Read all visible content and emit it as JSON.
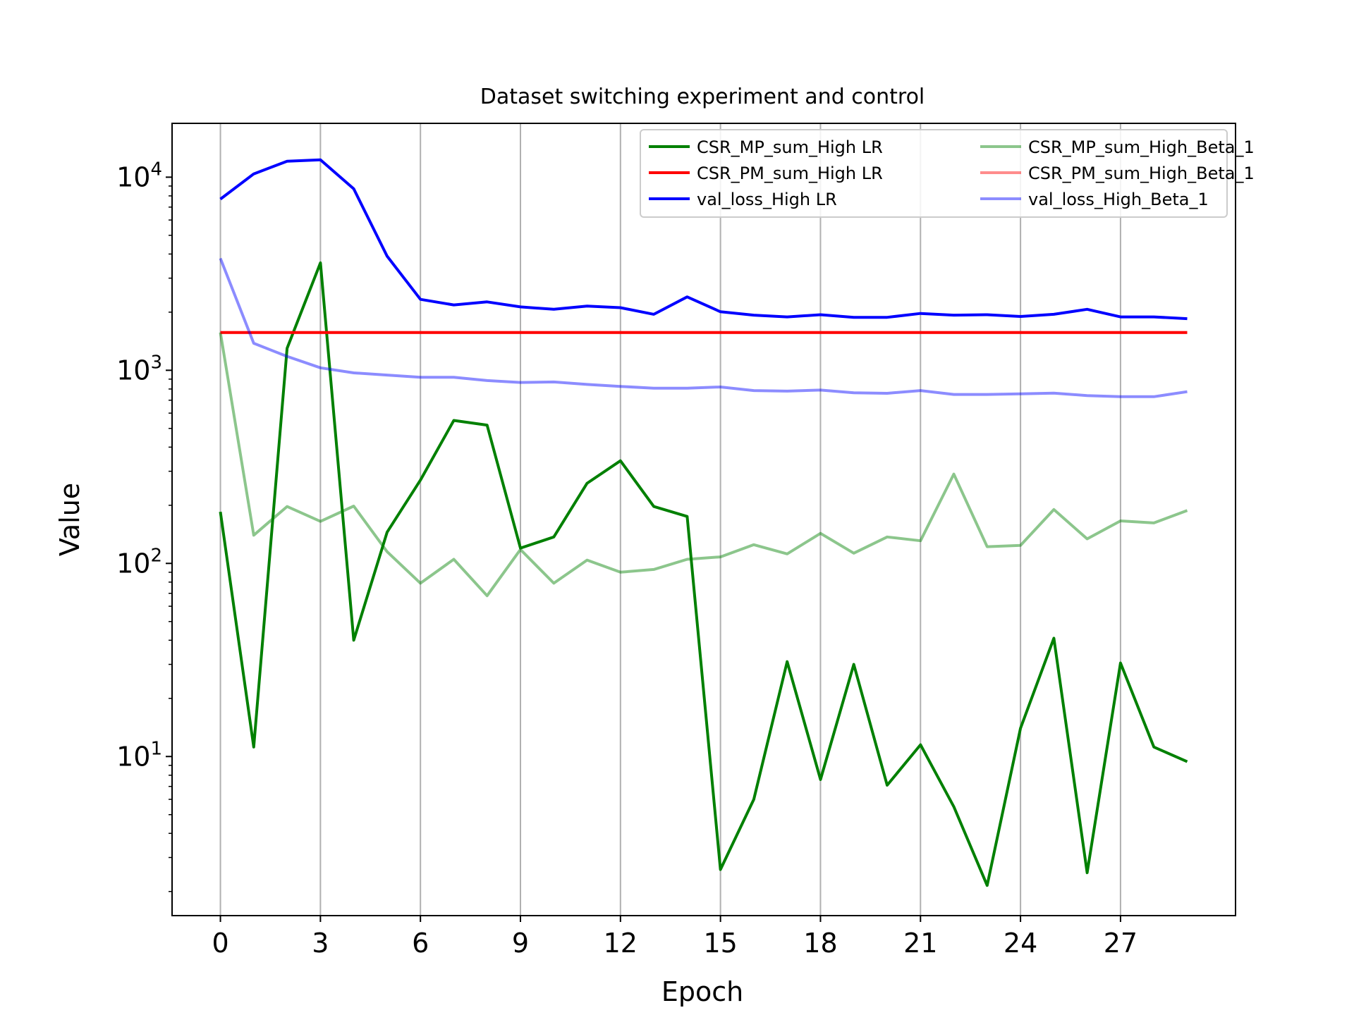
{
  "chart_data": {
    "type": "line",
    "title": "Dataset switching experiment and control",
    "xlabel": "Epoch",
    "ylabel": "Value",
    "yscale": "log",
    "xlim": [
      -1.45,
      30.45
    ],
    "ylim": [
      1.5,
      19000
    ],
    "xticks": [
      "0",
      "3",
      "6",
      "9",
      "12",
      "15",
      "18",
      "21",
      "24",
      "27"
    ],
    "xtick_values": [
      0,
      3,
      6,
      9,
      12,
      15,
      18,
      21,
      24,
      27
    ],
    "yticks": [
      {
        "value": 10,
        "base": "10",
        "exp": "1"
      },
      {
        "value": 100,
        "base": "10",
        "exp": "2"
      },
      {
        "value": 1000,
        "base": "10",
        "exp": "3"
      },
      {
        "value": 10000,
        "base": "10",
        "exp": "4"
      }
    ],
    "grid": "vertical",
    "legend_position": "top-right",
    "legend_columns": 2,
    "x": [
      0,
      1,
      2,
      3,
      4,
      5,
      6,
      7,
      8,
      9,
      10,
      11,
      12,
      13,
      14,
      15,
      16,
      17,
      18,
      19,
      20,
      21,
      22,
      23,
      24,
      25,
      26,
      27,
      28,
      29
    ],
    "series": [
      {
        "name": "CSR_MP_sum_High LR",
        "color": "#008000",
        "opacity": 1,
        "values": [
          185,
          11.2,
          1300,
          3600,
          40,
          145,
          270,
          550,
          520,
          120,
          137,
          260,
          340,
          197,
          175,
          2.6,
          6.0,
          31,
          7.6,
          30,
          7.1,
          11.5,
          5.5,
          2.15,
          14,
          41,
          2.5,
          30.5,
          11.2,
          9.4
        ]
      },
      {
        "name": "CSR_PM_sum_High LR",
        "color": "#ff0000",
        "opacity": 1,
        "values": [
          1570,
          1570,
          1570,
          1570,
          1570,
          1570,
          1570,
          1570,
          1570,
          1570,
          1570,
          1570,
          1570,
          1570,
          1570,
          1570,
          1570,
          1570,
          1570,
          1570,
          1570,
          1570,
          1570,
          1570,
          1570,
          1570,
          1570,
          1570,
          1570,
          1570
        ]
      },
      {
        "name": "val_loss_High LR",
        "color": "#0000ff",
        "opacity": 1,
        "values": [
          7700,
          10400,
          12100,
          12300,
          8700,
          3900,
          2330,
          2180,
          2260,
          2130,
          2070,
          2150,
          2110,
          1950,
          2400,
          2010,
          1930,
          1890,
          1940,
          1880,
          1880,
          1970,
          1930,
          1940,
          1900,
          1950,
          2070,
          1890,
          1890,
          1850
        ]
      },
      {
        "name": "CSR_MP_sum_High_Beta_1",
        "color": "#008000",
        "opacity": 0.45,
        "values": [
          1570,
          140,
          197,
          165,
          198,
          115,
          79,
          105,
          68,
          118,
          79,
          104,
          90,
          93,
          105,
          108,
          125,
          112,
          143,
          113,
          137,
          131,
          290,
          122,
          124,
          190,
          134,
          166,
          162,
          188
        ]
      },
      {
        "name": "CSR_PM_sum_High_Beta_1",
        "color": "#ff0000",
        "opacity": 0.45,
        "values": [
          1570,
          1570,
          1570,
          1570,
          1570,
          1570,
          1570,
          1570,
          1570,
          1570,
          1570,
          1570,
          1570,
          1570,
          1570,
          1570,
          1570,
          1570,
          1570,
          1570,
          1570,
          1570,
          1570,
          1570,
          1570,
          1570,
          1570,
          1570,
          1570,
          1570
        ]
      },
      {
        "name": "val_loss_High_Beta_1",
        "color": "#0000ff",
        "opacity": 0.45,
        "values": [
          3800,
          1380,
          1180,
          1030,
          970,
          945,
          920,
          920,
          885,
          865,
          870,
          845,
          825,
          808,
          808,
          820,
          785,
          780,
          790,
          765,
          760,
          785,
          750,
          750,
          755,
          762,
          740,
          730,
          730,
          775
        ]
      }
    ]
  }
}
